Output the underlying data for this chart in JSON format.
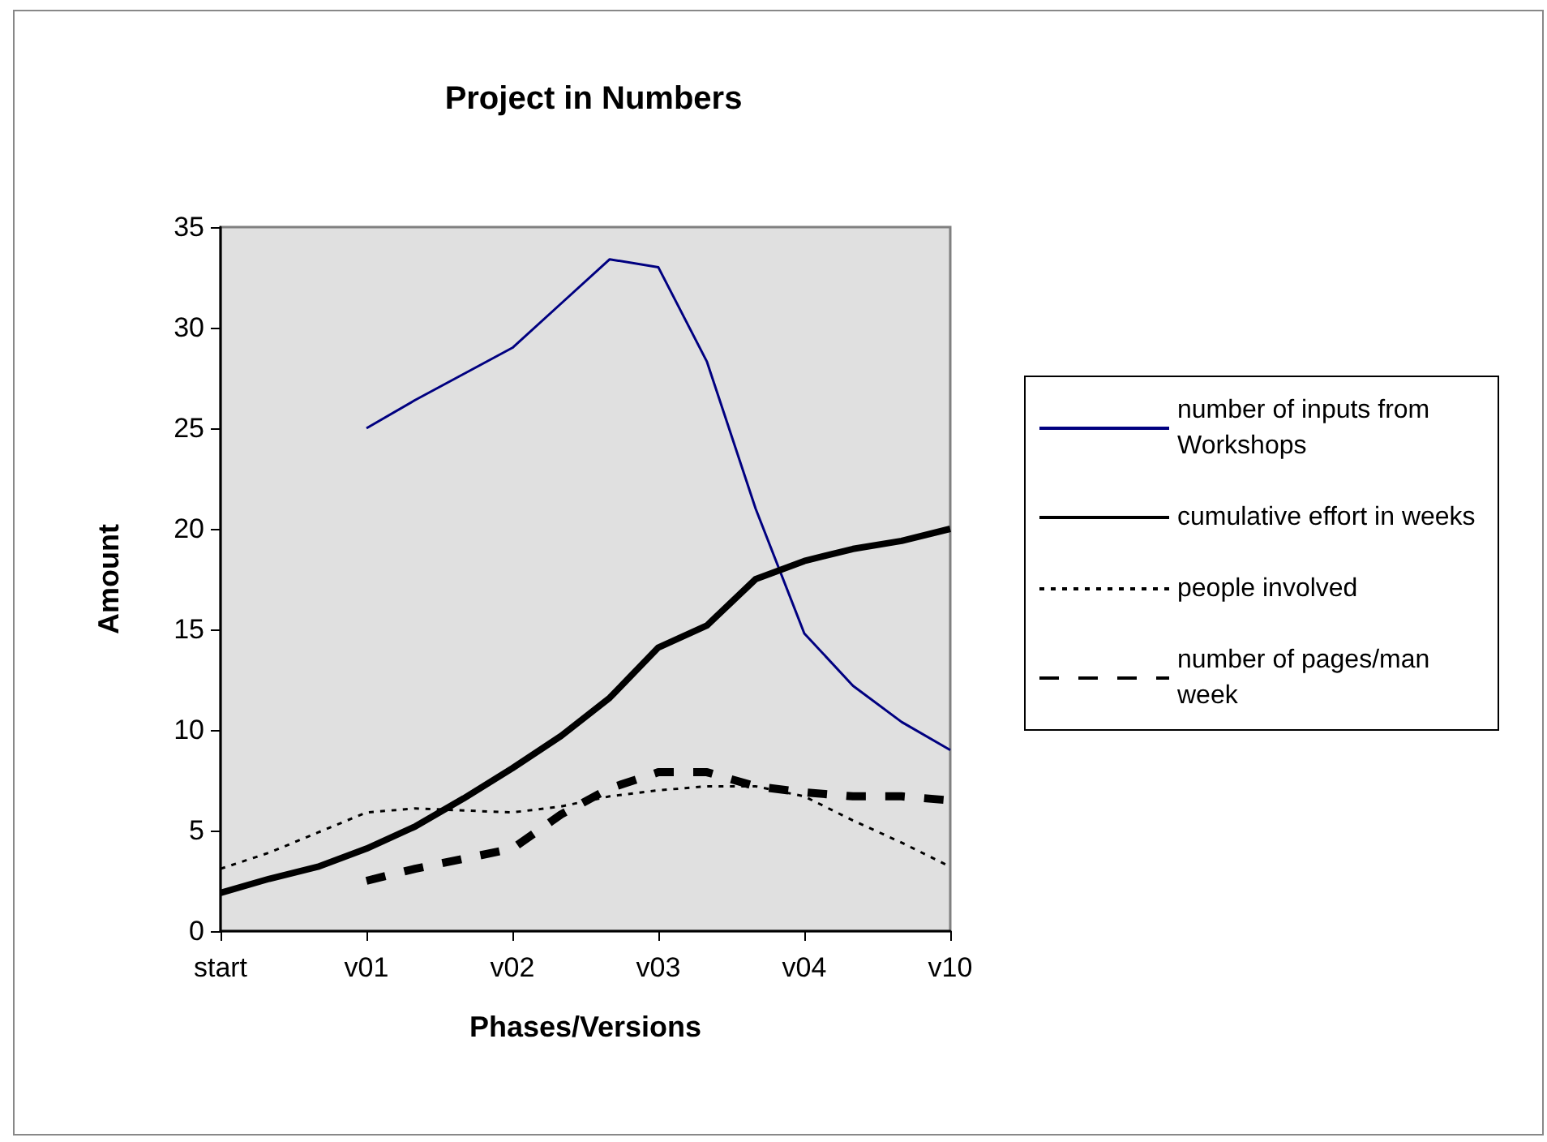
{
  "chart_data": {
    "type": "line",
    "title": "Project in Numbers",
    "xlabel": "Phases/Versions",
    "ylabel": "Amount",
    "categories": [
      "start",
      null,
      null,
      "v01",
      null,
      null,
      "v02",
      null,
      null,
      "v03",
      null,
      null,
      "v04",
      null,
      null,
      "v10"
    ],
    "series": [
      {
        "name": "number of inputs from Workshops",
        "color": "#000080",
        "line_style": "solid",
        "values": [
          null,
          null,
          null,
          25,
          26.4,
          27.7,
          29.0,
          31.2,
          33.4,
          33.0,
          28.3,
          21.0,
          14.8,
          12.2,
          10.4,
          9.0
        ]
      },
      {
        "name": "cumulative effort in weeks",
        "color": "#000000",
        "line_style": "solid",
        "values": [
          1.9,
          2.6,
          3.2,
          4.1,
          5.2,
          6.6,
          8.1,
          9.7,
          11.6,
          14.1,
          15.2,
          17.5,
          18.4,
          19.0,
          19.4,
          20.0
        ]
      },
      {
        "name": "people involved",
        "color": "#000000",
        "line_style": "dotted",
        "values": [
          3.1,
          3.9,
          4.9,
          5.9,
          6.1,
          6.0,
          5.9,
          6.2,
          6.7,
          7.0,
          7.2,
          7.2,
          6.7,
          5.5,
          4.4,
          3.2
        ]
      },
      {
        "name": "number of pages/man week",
        "color": "#000000",
        "line_style": "dashed",
        "values": [
          null,
          null,
          null,
          2.5,
          3.1,
          3.6,
          4.1,
          5.8,
          7.1,
          7.9,
          7.9,
          7.2,
          6.9,
          6.7,
          6.7,
          6.5
        ]
      }
    ],
    "ylim": [
      0,
      35
    ],
    "yticks": [
      0,
      5,
      10,
      15,
      20,
      25,
      30,
      35
    ],
    "grid": false,
    "legend": "right",
    "marker": "none"
  }
}
